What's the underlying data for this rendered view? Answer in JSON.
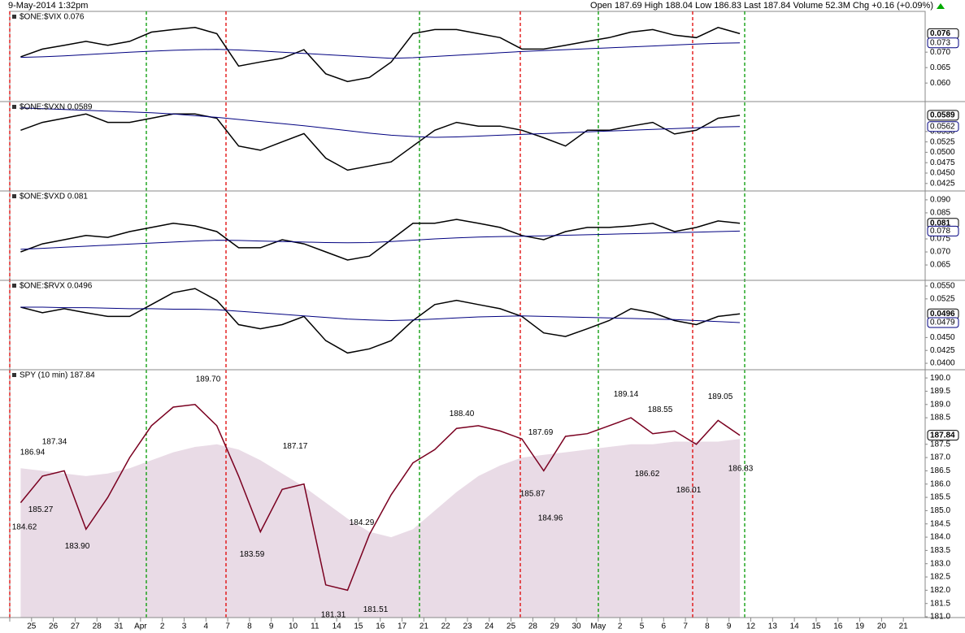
{
  "header": {
    "date": "9-May-2014 1:32pm",
    "quote": "Open 187.69 High 188.04 Low 186.83 Last 187.84 Volume 52.3M Chg +0.16 (+0.09%)"
  },
  "chart_data": [
    {
      "type": "line",
      "title": "$ONE:$VIX 0.076",
      "ylim": [
        0.054,
        0.0832
      ],
      "yticks": [
        {
          "value": 0.06,
          "label": "0.060"
        },
        0.065,
        {
          "value": 0.07,
          "label": "0.070"
        }
      ],
      "series": [
        {
          "color": "#000000",
          "end_label": true,
          "values": [
            0.0685,
            0.071,
            0.0722,
            0.0735,
            0.0722,
            0.0735,
            0.0765,
            0.0773,
            0.078,
            0.076,
            0.0655,
            0.0668,
            0.068,
            0.0708,
            0.063,
            0.0605,
            0.0618,
            0.0668,
            0.076,
            0.0773,
            0.0773,
            0.076,
            0.0747,
            0.071,
            0.071,
            0.0722,
            0.0735,
            0.0747,
            0.0765,
            0.0773,
            0.0755,
            0.0747,
            0.078,
            0.076,
            null,
            null,
            null,
            null,
            null,
            null,
            null,
            null
          ]
        },
        {
          "color": "#000080",
          "end_label": true,
          "values": [
            0.0683,
            0.0685,
            0.0688,
            0.0692,
            0.0696,
            0.07,
            0.0703,
            0.0706,
            0.0708,
            0.0709,
            0.0707,
            0.0704,
            0.07,
            0.0696,
            0.0692,
            0.0688,
            0.0684,
            0.068,
            0.0682,
            0.0686,
            0.069,
            0.0694,
            0.0698,
            0.0702,
            0.0705,
            0.0708,
            0.0711,
            0.0714,
            0.0717,
            0.072,
            0.0723,
            0.0726,
            0.0729,
            0.073,
            null,
            null,
            null,
            null,
            null,
            null,
            null,
            null
          ]
        }
      ]
    },
    {
      "type": "line",
      "title": "$ONE:$VXN 0.0589",
      "ylim": [
        0.0407,
        0.0622
      ],
      "yticks": [
        0.0425,
        {
          "value": 0.045,
          "label": "0.0450"
        },
        0.0475,
        {
          "value": 0.05,
          "label": "0.0500"
        },
        0.0525,
        {
          "value": 0.055,
          "label": "0.0550"
        }
      ],
      "series": [
        {
          "color": "#000000",
          "end_label": true,
          "values": [
            0.0553,
            0.0572,
            0.0582,
            0.0592,
            0.0572,
            0.0572,
            0.0582,
            0.0592,
            0.0592,
            0.0582,
            0.0515,
            0.0505,
            0.0525,
            0.0545,
            0.0486,
            0.0457,
            0.0467,
            0.0477,
            0.0515,
            0.0553,
            0.0572,
            0.0563,
            0.0563,
            0.0553,
            0.0535,
            0.0515,
            0.0553,
            0.0553,
            0.0563,
            0.0572,
            0.0544,
            0.0553,
            0.0582,
            0.0589,
            null,
            null,
            null,
            null,
            null,
            null,
            null,
            null
          ]
        },
        {
          "color": "#000080",
          "end_label": true,
          "values": [
            0.0607,
            0.0605,
            0.0603,
            0.0601,
            0.0599,
            0.0597,
            0.0595,
            0.0592,
            0.0588,
            0.0584,
            0.0579,
            0.0574,
            0.0569,
            0.0564,
            0.0558,
            0.0552,
            0.0546,
            0.0541,
            0.0538,
            0.0536,
            0.0537,
            0.0539,
            0.0541,
            0.0543,
            0.0545,
            0.0547,
            0.0549,
            0.0551,
            0.0553,
            0.0555,
            0.0557,
            0.0559,
            0.0561,
            0.0562,
            null,
            null,
            null,
            null,
            null,
            null,
            null,
            null
          ]
        }
      ]
    },
    {
      "type": "line",
      "title": "$ONE:$VXD 0.081",
      "ylim": [
        0.0591,
        0.0934
      ],
      "yticks": [
        0.065,
        {
          "value": 0.07,
          "label": "0.070"
        },
        0.075,
        0.085,
        {
          "value": 0.09,
          "label": "0.090"
        }
      ],
      "series": [
        {
          "color": "#000000",
          "end_label": true,
          "values": [
            0.07,
            0.0731,
            0.0747,
            0.0763,
            0.0756,
            0.0778,
            0.0794,
            0.081,
            0.08,
            0.0778,
            0.0716,
            0.0716,
            0.0747,
            0.0731,
            0.07,
            0.0669,
            0.0684,
            0.0747,
            0.081,
            0.081,
            0.0825,
            0.081,
            0.0794,
            0.0763,
            0.0747,
            0.0778,
            0.0794,
            0.0794,
            0.08,
            0.081,
            0.0778,
            0.0794,
            0.0819,
            0.081,
            null,
            null,
            null,
            null,
            null,
            null,
            null,
            null
          ]
        },
        {
          "color": "#000080",
          "end_label": true,
          "values": [
            0.071,
            0.0714,
            0.0718,
            0.0722,
            0.0726,
            0.073,
            0.0734,
            0.0738,
            0.0742,
            0.0745,
            0.0744,
            0.0742,
            0.074,
            0.0738,
            0.0736,
            0.0735,
            0.0736,
            0.074,
            0.0745,
            0.075,
            0.0754,
            0.0757,
            0.0759,
            0.076,
            0.0762,
            0.0764,
            0.0766,
            0.0768,
            0.077,
            0.0772,
            0.0774,
            0.0776,
            0.0778,
            0.078,
            null,
            null,
            null,
            null,
            null,
            null,
            null,
            null
          ]
        }
      ]
    },
    {
      "type": "line",
      "title": "$ONE:$RVX 0.0496",
      "ylim": [
        0.03875,
        0.0561
      ],
      "yticks": [
        {
          "value": 0.04,
          "label": "0.0400"
        },
        0.0425,
        {
          "value": 0.045,
          "label": "0.0450"
        },
        0.0525,
        {
          "value": 0.055,
          "label": "0.0550"
        }
      ],
      "series": [
        {
          "color": "#000000",
          "end_label": true,
          "values": [
            0.0509,
            0.0498,
            0.0506,
            0.0498,
            0.0491,
            0.0491,
            0.0514,
            0.0537,
            0.0545,
            0.0522,
            0.0475,
            0.0467,
            0.0475,
            0.0491,
            0.0444,
            0.042,
            0.0428,
            0.0444,
            0.0483,
            0.0514,
            0.0522,
            0.0514,
            0.0506,
            0.0491,
            0.0459,
            0.0452,
            0.0467,
            0.0483,
            0.0506,
            0.0498,
            0.0483,
            0.0475,
            0.0491,
            0.0496,
            null,
            null,
            null,
            null,
            null,
            null,
            null,
            null
          ]
        },
        {
          "color": "#000080",
          "end_label": true,
          "values": [
            0.0509,
            0.0509,
            0.0508,
            0.0508,
            0.0507,
            0.0506,
            0.0506,
            0.0505,
            0.0505,
            0.0504,
            0.0501,
            0.0498,
            0.0495,
            0.0492,
            0.0489,
            0.0486,
            0.0484,
            0.0483,
            0.0484,
            0.0486,
            0.0488,
            0.049,
            0.0491,
            0.0492,
            0.0491,
            0.049,
            0.0489,
            0.0488,
            0.0487,
            0.0486,
            0.0485,
            0.0483,
            0.0481,
            0.0479,
            null,
            null,
            null,
            null,
            null,
            null,
            null,
            null
          ]
        }
      ]
    },
    {
      "type": "line",
      "title": "SPY (10 min) 187.84",
      "ylim": [
        180.97,
        190.31
      ],
      "categories": [
        null,
        "25",
        "26",
        "27",
        "28",
        "31",
        "Apr",
        "2",
        "3",
        "4",
        "7",
        "8",
        "9",
        "10",
        "11",
        "14",
        "15",
        "16",
        "17",
        "21",
        "22",
        "23",
        "24",
        "25",
        "28",
        "29",
        "30",
        "May",
        "2",
        "5",
        "6",
        "7",
        "8",
        "9",
        "12",
        "13",
        "14",
        "15",
        "16",
        "19",
        "20",
        "21"
      ],
      "yticks": [
        {
          "value": 181,
          "label": "181.0"
        },
        181.5,
        {
          "value": 182,
          "label": "182.0"
        },
        182.5,
        {
          "value": 183,
          "label": "183.0"
        },
        183.5,
        {
          "value": 184,
          "label": "184.0"
        },
        184.5,
        {
          "value": 185,
          "label": "185.0"
        },
        185.5,
        {
          "value": 186,
          "label": "186.0"
        },
        186.5,
        {
          "value": 187,
          "label": "187.0"
        },
        187.5,
        188.5,
        {
          "value": 189,
          "label": "189.0"
        },
        189.5,
        {
          "value": 190,
          "label": "190.0"
        }
      ],
      "series": [
        {
          "color": "#e9dbe6",
          "area": true,
          "end_label": false,
          "values": [
            186.6,
            186.5,
            186.4,
            186.3,
            186.4,
            186.6,
            186.9,
            187.2,
            187.4,
            187.5,
            187.3,
            186.9,
            186.4,
            185.9,
            185.3,
            184.7,
            184.2,
            184.0,
            184.3,
            185.0,
            185.7,
            186.3,
            186.7,
            187.0,
            187.1,
            187.2,
            187.3,
            187.4,
            187.5,
            187.5,
            187.6,
            187.6,
            187.6,
            187.7,
            null,
            null,
            null,
            null,
            null,
            null,
            null,
            null
          ]
        },
        {
          "color": "#7a0020",
          "end_label": true,
          "values": [
            185.3,
            186.3,
            186.5,
            184.3,
            185.5,
            187.0,
            188.2,
            188.9,
            189.0,
            188.2,
            186.3,
            184.2,
            185.8,
            186.0,
            182.2,
            182.0,
            184.1,
            185.6,
            186.8,
            187.3,
            188.1,
            188.2,
            188.0,
            187.7,
            186.5,
            187.8,
            187.9,
            188.2,
            188.5,
            187.9,
            188.0,
            187.5,
            188.4,
            187.84,
            null,
            null,
            null,
            null,
            null,
            null,
            null,
            null
          ]
        }
      ],
      "annotations": [
        {
          "value": 189.7,
          "label": "189.70"
        },
        {
          "value": 187.34,
          "label": "187.34"
        },
        {
          "value": 186.94,
          "label": "186.94"
        },
        {
          "value": 185.27,
          "label": "185.27"
        },
        {
          "value": 184.62,
          "label": "184.62"
        },
        {
          "value": 183.9,
          "label": "183.90"
        },
        {
          "value": 183.59,
          "label": "183.59"
        },
        {
          "value": 187.17,
          "label": "187.17"
        },
        {
          "value": 181.31,
          "label": "181.31"
        },
        {
          "value": 184.29,
          "label": "184.29"
        },
        {
          "value": 181.51,
          "label": "181.51"
        },
        {
          "value": 188.4,
          "label": "188.40"
        },
        {
          "value": 187.69,
          "label": "187.69"
        },
        {
          "value": 185.87,
          "label": "185.87"
        },
        {
          "value": 184.96,
          "label": "184.96"
        },
        {
          "value": 189.14,
          "label": "189.14"
        },
        {
          "value": 188.55,
          "label": "188.55"
        },
        {
          "value": 186.62,
          "label": "186.62"
        },
        {
          "value": 186.01,
          "label": "186.01"
        },
        {
          "value": 189.05,
          "label": "189.05"
        },
        {
          "value": 186.83,
          "label": "186.83"
        }
      ]
    }
  ]
}
